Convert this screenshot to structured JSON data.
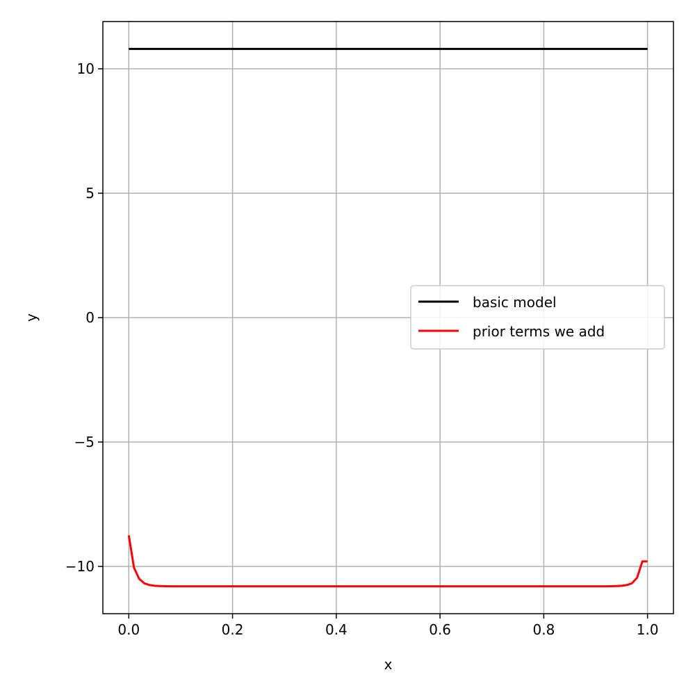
{
  "chart_data": {
    "type": "line",
    "xlabel": "x",
    "ylabel": "y",
    "xlim": [
      -0.05,
      1.05
    ],
    "ylim": [
      -11.9,
      11.9
    ],
    "xticks": [
      0.0,
      0.2,
      0.4,
      0.6,
      0.8,
      1.0
    ],
    "xtick_labels": [
      "0.0",
      "0.2",
      "0.4",
      "0.6",
      "0.8",
      "1.0"
    ],
    "yticks": [
      -10,
      -5,
      0,
      5,
      10
    ],
    "ytick_labels": [
      "−10",
      "−5",
      "0",
      "5",
      "10"
    ],
    "grid": true,
    "legend_position": "center-right",
    "series": [
      {
        "name": "basic model",
        "color": "#000000",
        "x": [
          0.0,
          1.0
        ],
        "y": [
          10.8,
          10.8
        ]
      },
      {
        "name": "prior terms we add",
        "color": "#ff0000",
        "x": [
          0.0,
          0.01,
          0.02,
          0.03,
          0.04,
          0.05,
          0.06,
          0.08,
          0.1,
          0.2,
          0.3,
          0.4,
          0.5,
          0.6,
          0.7,
          0.8,
          0.9,
          0.92,
          0.94,
          0.95,
          0.96,
          0.97,
          0.98,
          0.99,
          1.0
        ],
        "y": [
          -8.75,
          -10.05,
          -10.5,
          -10.68,
          -10.75,
          -10.78,
          -10.79,
          -10.8,
          -10.8,
          -10.8,
          -10.8,
          -10.8,
          -10.8,
          -10.8,
          -10.8,
          -10.8,
          -10.8,
          -10.8,
          -10.79,
          -10.78,
          -10.75,
          -10.68,
          -10.45,
          -9.8,
          -9.8
        ]
      }
    ]
  }
}
